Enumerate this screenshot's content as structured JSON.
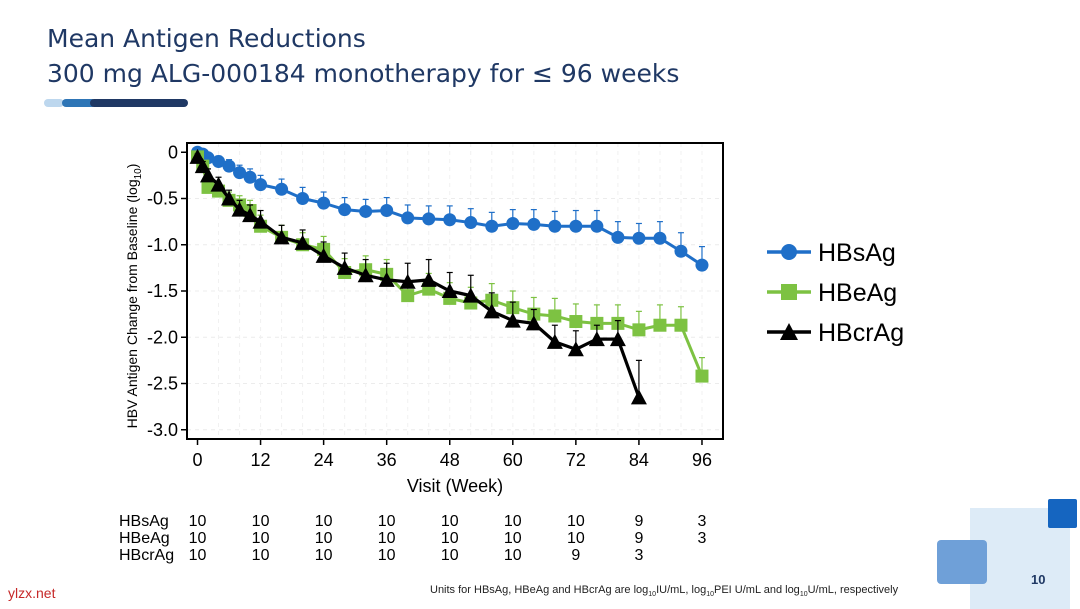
{
  "slide": {
    "title_line1": "Mean Antigen Reductions",
    "title_line2": "300 mg ALG-000184 monotherapy for ≤ 96 weeks",
    "page_number": "10",
    "watermark": "ylzx.net",
    "footnote": {
      "prefix": "Units for HBsAg, HBeAg and HBcrAg are log",
      "sub1": "10",
      "mid1": "IU/mL, log",
      "sub2": "10",
      "mid2": "PEI U/mL and  log",
      "sub3": "10",
      "suffix": "U/mL, respectively"
    },
    "colors": {
      "title": "#1F3864",
      "accent_light": "#BDD7EE",
      "accent_mid": "#2E75B6",
      "accent_dark": "#1F3864"
    }
  },
  "chart_data": {
    "type": "line",
    "xlabel": "Visit (Week)",
    "ylabel": "HBV Antigen Change from Baseline (log10)",
    "ylabel_main": "HBV Antigen Change from Baseline (log",
    "ylabel_sub": "10",
    "ylabel_end": ")",
    "xlim": [
      -2,
      100
    ],
    "ylim": [
      -3.1,
      0.1
    ],
    "xticks": [
      0,
      12,
      24,
      36,
      48,
      60,
      72,
      84,
      96
    ],
    "xtick_labels": [
      "0",
      "12",
      "24",
      "36",
      "48",
      "60",
      "72",
      "84",
      "96"
    ],
    "yticks": [
      0,
      -0.5,
      -1.0,
      -1.5,
      -2.0,
      -2.5,
      -3.0
    ],
    "ytick_labels": [
      "0",
      "-0.5",
      "-1.0",
      "-1.5",
      "-2.0",
      "-2.5",
      "-3.0"
    ],
    "legend_position": "right",
    "series": [
      {
        "name": "HBsAg",
        "color": "#1F6FC8",
        "marker": "circle",
        "x": [
          0,
          1,
          2,
          4,
          6,
          8,
          10,
          12,
          16,
          20,
          24,
          28,
          32,
          36,
          40,
          44,
          48,
          52,
          56,
          60,
          64,
          68,
          72,
          76,
          80,
          84,
          88,
          92,
          96
        ],
        "y": [
          0,
          -0.02,
          -0.06,
          -0.1,
          -0.15,
          -0.22,
          -0.27,
          -0.35,
          -0.4,
          -0.5,
          -0.55,
          -0.62,
          -0.64,
          -0.63,
          -0.71,
          -0.72,
          -0.73,
          -0.76,
          -0.8,
          -0.77,
          -0.78,
          -0.8,
          -0.8,
          -0.8,
          -0.92,
          -0.93,
          -0.93,
          -1.07,
          -1.22
        ],
        "err": [
          0,
          0.04,
          0.05,
          0.06,
          0.07,
          0.08,
          0.09,
          0.1,
          0.11,
          0.12,
          0.12,
          0.13,
          0.13,
          0.14,
          0.14,
          0.14,
          0.15,
          0.15,
          0.15,
          0.15,
          0.16,
          0.16,
          0.17,
          0.17,
          0.17,
          0.16,
          0.18,
          0.2,
          0.2
        ]
      },
      {
        "name": "HBeAg",
        "color": "#7DC242",
        "marker": "square",
        "x": [
          0,
          1,
          2,
          4,
          6,
          8,
          10,
          12,
          16,
          20,
          24,
          28,
          32,
          36,
          40,
          44,
          48,
          52,
          56,
          60,
          64,
          68,
          72,
          76,
          80,
          84,
          88,
          92,
          96
        ],
        "y": [
          -0.05,
          -0.15,
          -0.38,
          -0.42,
          -0.52,
          -0.57,
          -0.63,
          -0.8,
          -0.92,
          -1.0,
          -1.05,
          -1.3,
          -1.27,
          -1.32,
          -1.55,
          -1.48,
          -1.58,
          -1.63,
          -1.6,
          -1.68,
          -1.75,
          -1.77,
          -1.83,
          -1.85,
          -1.85,
          -1.92,
          -1.87,
          -1.87,
          -2.42
        ],
        "err": [
          0.04,
          0.06,
          0.07,
          0.08,
          0.09,
          0.1,
          0.11,
          0.12,
          0.13,
          0.13,
          0.14,
          0.15,
          0.15,
          0.16,
          0.16,
          0.17,
          0.17,
          0.17,
          0.18,
          0.18,
          0.18,
          0.19,
          0.19,
          0.2,
          0.2,
          0.2,
          0.22,
          0.2,
          0.2
        ]
      },
      {
        "name": "HBcrAg",
        "color": "#000000",
        "marker": "triangle",
        "x": [
          0,
          1,
          2,
          4,
          6,
          8,
          10,
          12,
          16,
          20,
          24,
          28,
          32,
          36,
          40,
          44,
          48,
          52,
          56,
          60,
          64,
          68,
          72,
          76,
          80,
          84
        ],
        "y": [
          -0.05,
          -0.15,
          -0.25,
          -0.35,
          -0.5,
          -0.62,
          -0.68,
          -0.75,
          -0.92,
          -0.98,
          -1.12,
          -1.25,
          -1.33,
          -1.38,
          -1.4,
          -1.38,
          -1.5,
          -1.55,
          -1.72,
          -1.82,
          -1.85,
          -2.05,
          -2.13,
          -2.02,
          -2.02,
          -2.65
        ],
        "err": [
          0.03,
          0.05,
          0.07,
          0.08,
          0.09,
          0.1,
          0.11,
          0.12,
          0.13,
          0.14,
          0.15,
          0.16,
          0.17,
          0.18,
          0.2,
          0.22,
          0.2,
          0.22,
          0.2,
          0.2,
          0.15,
          0.18,
          0.2,
          0.15,
          0.2,
          0.4
        ]
      }
    ],
    "n_table": {
      "columns": [
        0,
        12,
        24,
        36,
        48,
        60,
        72,
        84,
        96
      ],
      "rows": [
        {
          "label": "HBsAg",
          "values": [
            "10",
            "10",
            "10",
            "10",
            "10",
            "10",
            "10",
            "9",
            "3"
          ]
        },
        {
          "label": "HBeAg",
          "values": [
            "10",
            "10",
            "10",
            "10",
            "10",
            "10",
            "10",
            "9",
            "3"
          ]
        },
        {
          "label": "HBcrAg",
          "values": [
            "10",
            "10",
            "10",
            "10",
            "10",
            "10",
            "9",
            "3",
            ""
          ]
        }
      ]
    }
  }
}
